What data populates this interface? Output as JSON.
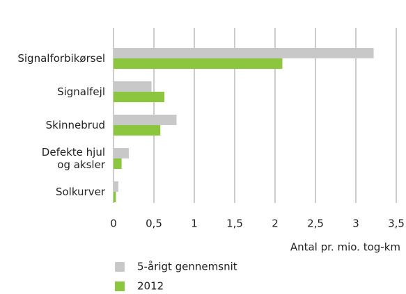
{
  "chart_data": {
    "type": "hbar",
    "categories": [
      "Signalforbikørsel",
      "Signalfejl",
      "Skinnebrud",
      "Defekte hjul\nog aksler",
      "Solkurver"
    ],
    "series": [
      {
        "name": "5-årigt gennemsnit",
        "color": "#c8c8c8",
        "values": [
          3.22,
          0.47,
          0.78,
          0.19,
          0.06
        ]
      },
      {
        "name": "2012",
        "color": "#8cc63f",
        "values": [
          2.09,
          0.63,
          0.58,
          0.1,
          0.03
        ]
      }
    ],
    "xlabel": "Antal pr. mio. tog-km",
    "xlim": [
      0,
      3.5
    ],
    "xticks": [
      0,
      {
        "value": 0.5,
        "label": "0,5"
      },
      1,
      {
        "value": 1.5,
        "label": "1,5"
      },
      2,
      {
        "value": 2.5,
        "label": "2,5"
      },
      3,
      {
        "value": 3.5,
        "label": "3,5"
      }
    ],
    "grid": true
  }
}
